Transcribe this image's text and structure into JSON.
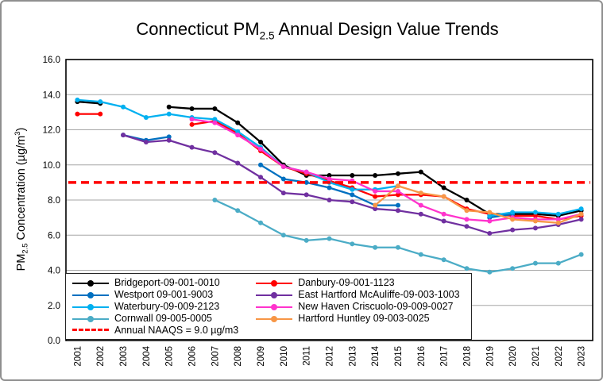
{
  "window": {
    "background": "#ffffff",
    "border_color": "#8f8f8f"
  },
  "chart_data": {
    "type": "line",
    "title": {
      "prefix": "Connecticut PM",
      "sub": "2.5",
      "suffix": " Annual Design Value Trends"
    },
    "y_axis": {
      "label_prefix": "PM",
      "label_sub": "2.5",
      "label_mid": " Concentration (µg/m",
      "label_sup": "3",
      "label_suffix": ")",
      "min": 0,
      "max": 16,
      "tick_step": 2,
      "tick_labels": [
        "0.0",
        "2.0",
        "4.0",
        "6.0",
        "8.0",
        "10.0",
        "12.0",
        "14.0",
        "16.0"
      ]
    },
    "x_axis": {
      "years": [
        "2001",
        "2002",
        "2003",
        "2004",
        "2005",
        "2006",
        "2007",
        "2008",
        "2009",
        "2010",
        "2011",
        "2012",
        "2013",
        "2014",
        "2015",
        "2016",
        "2017",
        "2018",
        "2019",
        "2020",
        "2021",
        "2022",
        "2023"
      ]
    },
    "grid": true,
    "gridline_color": "#a6a6a6",
    "plot_border_color": "#000000",
    "series": [
      {
        "key": "bridgeport",
        "name": "Bridgeport-09-001-0010",
        "color": "#000000",
        "values": [
          13.6,
          13.5,
          null,
          null,
          13.3,
          13.2,
          13.2,
          12.4,
          11.3,
          10.0,
          9.4,
          9.4,
          9.4,
          9.4,
          9.5,
          9.6,
          8.7,
          8.0,
          7.2,
          7.2,
          7.2,
          7.1,
          7.4
        ]
      },
      {
        "key": "danbury",
        "name": "Danbury-09-001-1123",
        "color": "#FF0000",
        "values": [
          12.9,
          12.9,
          null,
          null,
          null,
          12.3,
          12.5,
          11.8,
          10.8,
          9.9,
          9.5,
          9.1,
          8.7,
          8.2,
          8.3,
          8.3,
          8.2,
          7.5,
          7.2,
          7.1,
          7.1,
          6.9,
          7.1
        ]
      },
      {
        "key": "westport",
        "name": "Westport 09-001-9003",
        "color": "#0070C0",
        "values": [
          null,
          null,
          11.7,
          11.4,
          11.6,
          null,
          null,
          null,
          10.0,
          9.2,
          9.0,
          8.7,
          8.3,
          7.7,
          7.7,
          null,
          null,
          null,
          7.0,
          7.2,
          null,
          null,
          null
        ]
      },
      {
        "key": "east_hartford",
        "name": "East Hartford McAuliffe-09-003-1003",
        "color": "#7030A0",
        "values": [
          null,
          null,
          11.7,
          11.3,
          11.4,
          11.0,
          10.7,
          10.1,
          9.3,
          8.4,
          8.3,
          8.0,
          7.9,
          7.5,
          7.4,
          7.2,
          6.8,
          6.5,
          6.1,
          6.3,
          6.4,
          6.6,
          6.9
        ]
      },
      {
        "key": "waterbury",
        "name": "Waterbury-09-009-2123",
        "color": "#00B0F0",
        "values": [
          13.7,
          13.6,
          13.3,
          12.7,
          12.9,
          12.7,
          12.6,
          11.9,
          11.0,
          9.9,
          9.6,
          9.0,
          8.6,
          8.6,
          8.8,
          null,
          null,
          null,
          7.1,
          7.3,
          7.3,
          7.2,
          7.5
        ]
      },
      {
        "key": "new_haven",
        "name": "New Haven Criscuolo-09-009-0027",
        "color": "#FF33CC",
        "values": [
          null,
          null,
          null,
          null,
          null,
          12.6,
          12.4,
          11.7,
          10.9,
          9.9,
          9.6,
          9.2,
          9.1,
          8.5,
          8.5,
          7.7,
          7.2,
          6.9,
          6.8,
          7.0,
          6.9,
          6.9,
          7.2
        ]
      },
      {
        "key": "cornwall",
        "name": "Cornwall 09-005-0005",
        "color": "#4BACC6",
        "values": [
          null,
          null,
          null,
          null,
          null,
          null,
          8.0,
          7.4,
          6.7,
          6.0,
          5.7,
          5.8,
          5.5,
          5.3,
          5.3,
          4.9,
          4.6,
          4.1,
          3.9,
          4.1,
          4.4,
          4.4,
          4.9
        ]
      },
      {
        "key": "hartford_huntley",
        "name": "Hartford Huntley 09-003-0025",
        "color": "#F79646",
        "values": [
          null,
          null,
          null,
          null,
          null,
          null,
          null,
          null,
          null,
          null,
          null,
          null,
          null,
          7.7,
          8.8,
          8.4,
          8.2,
          7.4,
          7.3,
          6.9,
          6.8,
          6.7,
          7.2
        ]
      }
    ],
    "reference_line": {
      "label": "Annual NAAQS = 9.0 µg/m3",
      "value": 9.0,
      "color": "#FF0000",
      "style": "dashed"
    },
    "legend": {
      "position": "bottom-left-two-columns",
      "row_major_keys": [
        "bridgeport",
        "danbury",
        "westport",
        "east_hartford",
        "waterbury",
        "new_haven",
        "cornwall",
        "hartford_huntley"
      ]
    }
  }
}
